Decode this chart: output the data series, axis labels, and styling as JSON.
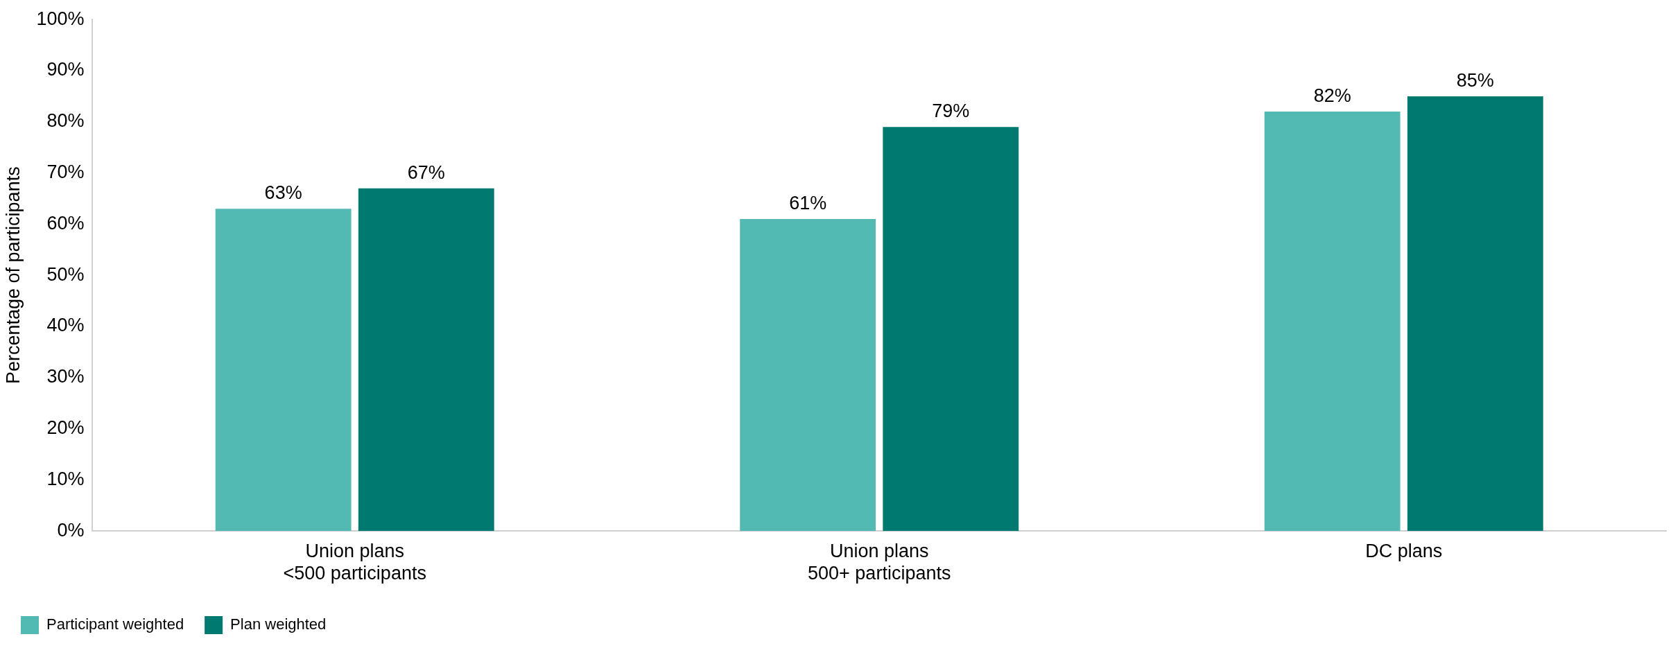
{
  "chart_data": {
    "type": "bar",
    "ylabel": "Percentage of participants",
    "categories": [
      "Union plans\n<500 participants",
      "Union plans\n500+ participants",
      "DC plans"
    ],
    "series": [
      {
        "name": "Participant weighted",
        "color": "#52b9b3",
        "values": [
          63,
          61,
          82
        ]
      },
      {
        "name": "Plan weighted",
        "color": "#007a70",
        "values": [
          67,
          79,
          85
        ]
      }
    ],
    "ylim": [
      0,
      100
    ],
    "yticks": [
      {
        "value": 0,
        "label": "0%"
      },
      {
        "value": 10,
        "label": "10%"
      },
      {
        "value": 20,
        "label": "20%"
      },
      {
        "value": 30,
        "label": "30%"
      },
      {
        "value": 40,
        "label": "40%"
      },
      {
        "value": 50,
        "label": "50%"
      },
      {
        "value": 60,
        "label": "60%"
      },
      {
        "value": 70,
        "label": "70%"
      },
      {
        "value": 80,
        "label": "80%"
      },
      {
        "value": 90,
        "label": "90%"
      },
      {
        "value": 100,
        "label": "100%"
      }
    ],
    "value_labels": [
      [
        "63%",
        "61%",
        "82%"
      ],
      [
        "67%",
        "79%",
        "85%"
      ]
    ],
    "grid": false,
    "legend": "bottom left"
  }
}
